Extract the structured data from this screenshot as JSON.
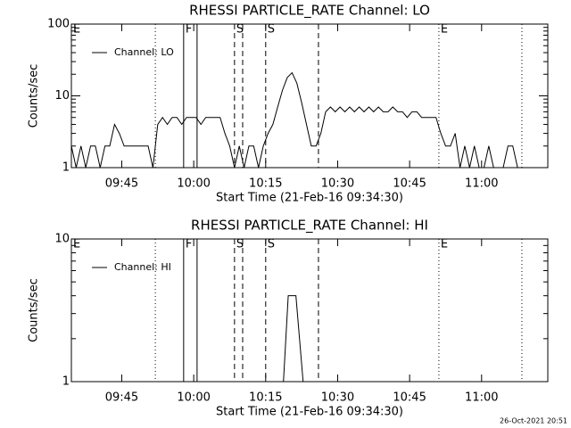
{
  "chart_data": [
    {
      "type": "line",
      "title": "RHESSI PARTICLE_RATE Channel: LO",
      "ylabel": "Counts/sec",
      "xlabel": "Start Time (21-Feb-16 09:34:30)",
      "log_y": true,
      "color": "#000000",
      "xlim": [
        0,
        99.3
      ],
      "xticks": [
        {
          "value": 10.5,
          "label": "09:45"
        },
        {
          "value": 25.5,
          "label": "10:00"
        },
        {
          "value": 40.5,
          "label": "10:15"
        },
        {
          "value": 55.5,
          "label": "10:30"
        },
        {
          "value": 70.5,
          "label": "10:45"
        },
        {
          "value": 85.5,
          "label": "11:00"
        }
      ],
      "ylim": [
        1,
        100
      ],
      "yticks": [
        1,
        10,
        100
      ],
      "x": [
        0,
        1,
        2,
        3,
        4,
        5,
        6,
        7,
        8,
        9,
        10,
        11,
        12,
        13,
        14,
        15,
        16,
        17,
        18,
        19,
        20,
        21,
        22,
        23,
        24,
        25,
        26,
        27,
        28,
        29,
        30,
        31,
        32,
        33,
        34,
        35,
        36,
        37,
        38,
        39,
        40,
        41,
        42,
        43,
        44,
        45,
        46,
        47,
        48,
        49,
        50,
        51,
        52,
        53,
        54,
        55,
        56,
        57,
        58,
        59,
        60,
        61,
        62,
        63,
        64,
        65,
        66,
        67,
        68,
        69,
        70,
        71,
        72,
        73,
        74,
        75,
        76,
        77,
        78,
        79,
        80,
        81,
        82,
        83,
        84,
        85,
        86,
        87,
        88,
        89,
        90,
        91,
        92,
        93,
        94
      ],
      "series": [
        {
          "name": "Channel: LO",
          "values": [
            2,
            1,
            2,
            1,
            2,
            2,
            1,
            2,
            2,
            4,
            3,
            2,
            2,
            2,
            2,
            2,
            2,
            1,
            4,
            5,
            4,
            5,
            5,
            4,
            5,
            5,
            5,
            4,
            5,
            5,
            5,
            5,
            3,
            2,
            1,
            2,
            1,
            2,
            2,
            1,
            2,
            3,
            4,
            7,
            12,
            18,
            21,
            15,
            8,
            4,
            2,
            2,
            3,
            6,
            7,
            6,
            7,
            6,
            7,
            6,
            7,
            6,
            7,
            6,
            7,
            6,
            6,
            7,
            6,
            6,
            5,
            6,
            6,
            5,
            5,
            5,
            5,
            3,
            2,
            2,
            3,
            1,
            2,
            1,
            2,
            1,
            1,
            2,
            1,
            1,
            1,
            2,
            2,
            1,
            1
          ]
        }
      ],
      "markers": [
        {
          "x": 0,
          "style": "dotted",
          "label": "E"
        },
        {
          "x": 17.5,
          "style": "dotted"
        },
        {
          "x": 23.4,
          "style": "solid",
          "label": "F"
        },
        {
          "x": 26.2,
          "style": "solid"
        },
        {
          "x": 34.0,
          "style": "dashed",
          "label": "S"
        },
        {
          "x": 35.7,
          "style": "dashed"
        },
        {
          "x": 40.5,
          "style": "dashed",
          "label": "S"
        },
        {
          "x": 51.5,
          "style": "dashed"
        },
        {
          "x": 76.6,
          "style": "dotted",
          "label": "E"
        },
        {
          "x": 93.9,
          "style": "dotted"
        }
      ]
    },
    {
      "type": "line",
      "title": "RHESSI PARTICLE_RATE Channel: HI",
      "ylabel": "Counts/sec",
      "xlabel": "Start Time (21-Feb-16 09:34:30)",
      "log_y": true,
      "color": "#000000",
      "xlim": [
        0,
        99.3
      ],
      "xticks": [
        {
          "value": 10.5,
          "label": "09:45"
        },
        {
          "value": 25.5,
          "label": "10:00"
        },
        {
          "value": 40.5,
          "label": "10:15"
        },
        {
          "value": 55.5,
          "label": "10:30"
        },
        {
          "value": 70.5,
          "label": "10:45"
        },
        {
          "value": 85.5,
          "label": "11:00"
        }
      ],
      "ylim": [
        1,
        10
      ],
      "yticks": [
        1,
        10
      ],
      "x": [
        0,
        44.2,
        45.2,
        46.8,
        48.3,
        94
      ],
      "series": [
        {
          "name": "Channel: HI",
          "values": [
            1,
            1,
            4,
            4,
            1,
            1
          ]
        }
      ],
      "markers": [
        {
          "x": 0,
          "style": "dotted",
          "label": "E"
        },
        {
          "x": 17.5,
          "style": "dotted"
        },
        {
          "x": 23.4,
          "style": "solid",
          "label": "F"
        },
        {
          "x": 26.2,
          "style": "solid"
        },
        {
          "x": 34.0,
          "style": "dashed",
          "label": "S"
        },
        {
          "x": 35.7,
          "style": "dashed"
        },
        {
          "x": 40.5,
          "style": "dashed",
          "label": "S"
        },
        {
          "x": 51.5,
          "style": "dashed"
        },
        {
          "x": 76.6,
          "style": "dotted",
          "label": "E"
        },
        {
          "x": 93.9,
          "style": "dotted"
        }
      ]
    }
  ],
  "footer": "26-Oct-2021 20:51"
}
